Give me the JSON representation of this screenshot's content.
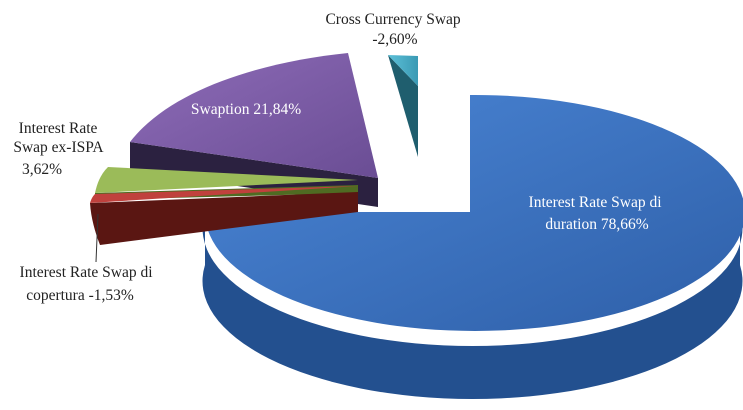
{
  "chart_data": {
    "type": "pie",
    "style": "3d-exploded",
    "slices": [
      {
        "name": "Interest Rate Swap di duration",
        "value": 78.66,
        "label_lines": [
          "Interest Rate Swap di",
          "duration 78,66%"
        ],
        "color": "#3D74C4",
        "side_color": "#234C8A",
        "label_inside": true
      },
      {
        "name": "Interest Rate Swap di copertura",
        "value": -1.53,
        "label_lines": [
          "Interest Rate Swap di",
          "copertura -1,53%"
        ],
        "color": "#C0413D",
        "side_color": "#5A1612",
        "label_inside": false
      },
      {
        "name": "Interest Rate Swap ex-ISPA",
        "value": 3.62,
        "label_lines": [
          "Interest Rate",
          "Swap ex-ISPA",
          "3,62%"
        ],
        "color": "#9BBB59",
        "side_color": "#4F6B22",
        "label_inside": false
      },
      {
        "name": "Swaption",
        "value": 21.84,
        "label_lines": [
          "Swaption 21,84%"
        ],
        "color": "#7B5BA6",
        "side_color": "#2E2240",
        "label_inside": true
      },
      {
        "name": "Cross Currency Swap",
        "value": -2.6,
        "label_lines": [
          "Cross Currency Swap",
          "-2,60%"
        ],
        "color": "#4BACC6",
        "side_color": "#1F5E6E",
        "label_inside": false
      }
    ]
  }
}
